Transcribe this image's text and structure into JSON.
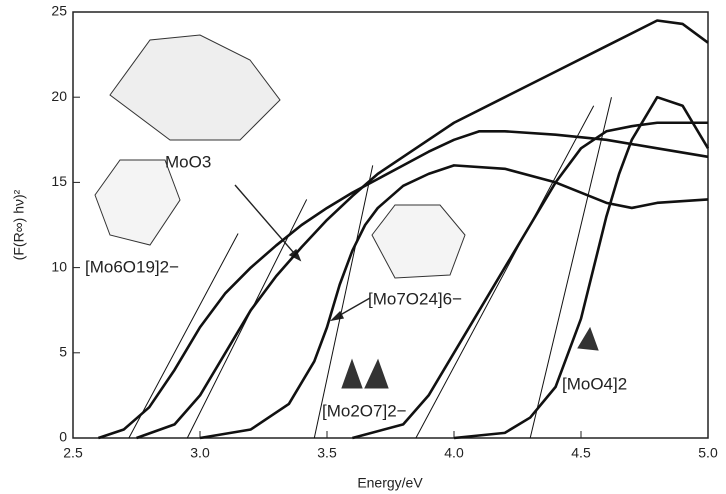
{
  "chart_data": {
    "type": "line",
    "xlabel": "Energy/eV",
    "ylabel": "(F(R∞) hν)²",
    "xlim": [
      2.5,
      5.0
    ],
    "xticks": [
      2.5,
      {
        "value": 3,
        "label": "3.0"
      },
      3.5,
      {
        "value": 4,
        "label": "4.0"
      },
      4.5,
      {
        "value": 5,
        "label": "5.0"
      }
    ],
    "ylim": [
      0,
      25
    ],
    "yticks": [
      0,
      5,
      10,
      15,
      20,
      25
    ],
    "series": [
      {
        "name": "[Mo6O19]2−",
        "color": "#111111",
        "x": [
          2.6,
          2.7,
          2.8,
          2.9,
          3.0,
          3.1,
          3.2,
          3.3,
          3.4,
          3.5,
          3.6,
          3.7,
          3.8,
          3.9,
          4.0,
          4.1,
          4.2,
          4.4,
          4.6,
          4.8,
          5.0
        ],
        "values": [
          0,
          0.5,
          1.8,
          4,
          6.5,
          8.5,
          10,
          11.3,
          12.5,
          13.5,
          14.4,
          15.2,
          16,
          16.8,
          17.5,
          18,
          18,
          17.8,
          17.5,
          17,
          16.5
        ],
        "tangent": {
          "x": [
            2.72,
            3.15
          ],
          "values": [
            0,
            12
          ]
        }
      },
      {
        "name": "MoO3",
        "color": "#111111",
        "x": [
          2.75,
          2.9,
          3.0,
          3.1,
          3.2,
          3.3,
          3.4,
          3.5,
          3.6,
          3.7,
          3.8,
          4.0,
          4.2,
          4.4,
          4.6,
          4.8,
          4.9,
          5.0
        ],
        "values": [
          0,
          0.8,
          2.5,
          5,
          7.5,
          9.5,
          11.2,
          12.8,
          14.2,
          15.5,
          16.5,
          18.5,
          20,
          21.5,
          23,
          24.5,
          24.3,
          23.2
        ],
        "tangent": {
          "x": [
            2.95,
            3.42
          ],
          "values": [
            0,
            14
          ]
        }
      },
      {
        "name": "[Mo7O24]6−",
        "color": "#111111",
        "x": [
          3.0,
          3.2,
          3.35,
          3.45,
          3.5,
          3.55,
          3.6,
          3.65,
          3.7,
          3.8,
          3.9,
          4.0,
          4.2,
          4.4,
          4.6,
          4.7,
          4.8,
          5.0
        ],
        "values": [
          0,
          0.5,
          2,
          4.5,
          6.5,
          9,
          11,
          12.5,
          13.5,
          14.8,
          15.5,
          16,
          15.8,
          15,
          13.8,
          13.5,
          13.8,
          14
        ],
        "tangent": {
          "x": [
            3.45,
            3.68
          ],
          "values": [
            0,
            16
          ]
        }
      },
      {
        "name": "[Mo2O7]2−",
        "color": "#111111",
        "x": [
          3.6,
          3.8,
          3.9,
          4.0,
          4.1,
          4.2,
          4.3,
          4.4,
          4.5,
          4.6,
          4.7,
          4.8,
          4.9,
          5.0
        ],
        "values": [
          0,
          0.8,
          2.5,
          5,
          7.5,
          10,
          12.5,
          15,
          17,
          18,
          18.3,
          18.5,
          18.5,
          18.5
        ],
        "tangent": {
          "x": [
            3.85,
            4.55
          ],
          "values": [
            0,
            19.5
          ]
        }
      },
      {
        "name": "[MoO4]2",
        "color": "#111111",
        "x": [
          4.0,
          4.2,
          4.3,
          4.4,
          4.45,
          4.5,
          4.55,
          4.6,
          4.65,
          4.7,
          4.8,
          4.9,
          5.0
        ],
        "values": [
          0,
          0.3,
          1.2,
          3,
          5,
          7,
          10,
          13,
          15.5,
          17.5,
          20,
          19.5,
          17
        ],
        "tangent": {
          "x": [
            4.3,
            4.62
          ],
          "values": [
            0,
            20
          ]
        }
      }
    ]
  }
}
